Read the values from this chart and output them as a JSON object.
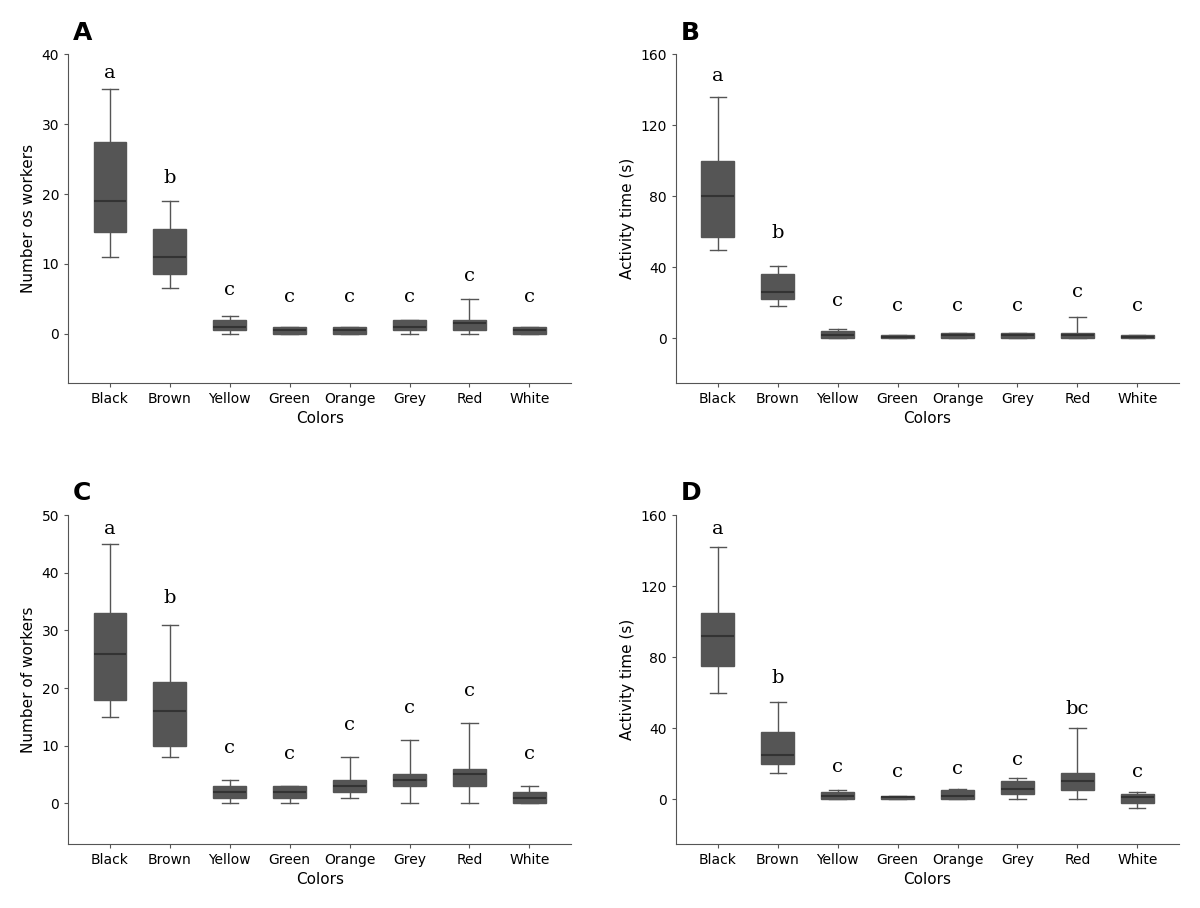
{
  "categories": [
    "Black",
    "Brown",
    "Yellow",
    "Green",
    "Orange",
    "Grey",
    "Red",
    "White"
  ],
  "panel_labels": [
    "A",
    "B",
    "C",
    "D"
  ],
  "box_facecolor": "#c8c8c8",
  "box_edgecolor": "#555555",
  "median_color": "#333333",
  "whisker_color": "#555555",
  "cap_color": "#555555",
  "A": {
    "ylabel": "Number os workers",
    "xlabel": "Colors",
    "ylim": [
      -7,
      40
    ],
    "yticks": [
      0,
      10,
      20,
      30,
      40
    ],
    "sig_labels": [
      "a",
      "b",
      "c",
      "c",
      "c",
      "c",
      "c",
      "c"
    ],
    "boxes": [
      {
        "q1": 14.5,
        "median": 19,
        "q3": 27.5,
        "whislo": 11,
        "whishi": 35
      },
      {
        "q1": 8.5,
        "median": 11,
        "q3": 15,
        "whislo": 6.5,
        "whishi": 19
      },
      {
        "q1": 0.5,
        "median": 1,
        "q3": 2,
        "whislo": 0,
        "whishi": 2.5
      },
      {
        "q1": 0,
        "median": 0.5,
        "q3": 1,
        "whislo": 0,
        "whishi": 1
      },
      {
        "q1": 0,
        "median": 0.5,
        "q3": 1,
        "whislo": 0,
        "whishi": 1
      },
      {
        "q1": 0.5,
        "median": 1,
        "q3": 2,
        "whislo": 0,
        "whishi": 2
      },
      {
        "q1": 0.5,
        "median": 1.5,
        "q3": 2,
        "whislo": 0,
        "whishi": 5
      },
      {
        "q1": 0,
        "median": 0.5,
        "q3": 1,
        "whislo": 0,
        "whishi": 1
      }
    ],
    "sig_y_offsets": [
      36,
      21,
      5,
      4,
      4,
      4,
      7,
      4
    ]
  },
  "B": {
    "ylabel": "Activity time (s)",
    "xlabel": "Colors",
    "ylim": [
      -25,
      160
    ],
    "yticks": [
      0,
      40,
      80,
      120,
      160
    ],
    "sig_labels": [
      "a",
      "b",
      "c",
      "c",
      "c",
      "c",
      "c",
      "c"
    ],
    "boxes": [
      {
        "q1": 57,
        "median": 80,
        "q3": 100,
        "whislo": 50,
        "whishi": 136
      },
      {
        "q1": 22,
        "median": 26,
        "q3": 36,
        "whislo": 18,
        "whishi": 41
      },
      {
        "q1": 0,
        "median": 2,
        "q3": 4,
        "whislo": 0,
        "whishi": 5
      },
      {
        "q1": 0,
        "median": 1,
        "q3": 2,
        "whislo": 0,
        "whishi": 2
      },
      {
        "q1": 0,
        "median": 2,
        "q3": 3,
        "whislo": 0,
        "whishi": 3
      },
      {
        "q1": 0,
        "median": 2,
        "q3": 3,
        "whislo": 0,
        "whishi": 3
      },
      {
        "q1": 0,
        "median": 2,
        "q3": 3,
        "whislo": 0,
        "whishi": 12
      },
      {
        "q1": 0,
        "median": 1,
        "q3": 2,
        "whislo": 0,
        "whishi": 2
      }
    ],
    "sig_y_offsets": [
      143,
      54,
      16,
      13,
      13,
      13,
      21,
      13
    ]
  },
  "C": {
    "ylabel": "Number of workers",
    "xlabel": "Colors",
    "ylim": [
      -7,
      50
    ],
    "yticks": [
      0,
      10,
      20,
      30,
      40,
      50
    ],
    "sig_labels": [
      "a",
      "b",
      "c",
      "c",
      "c",
      "c",
      "c",
      "c"
    ],
    "boxes": [
      {
        "q1": 18,
        "median": 26,
        "q3": 33,
        "whislo": 15,
        "whishi": 45
      },
      {
        "q1": 10,
        "median": 16,
        "q3": 21,
        "whislo": 8,
        "whishi": 31
      },
      {
        "q1": 1,
        "median": 2,
        "q3": 3,
        "whislo": 0,
        "whishi": 4
      },
      {
        "q1": 1,
        "median": 2,
        "q3": 3,
        "whislo": 0,
        "whishi": 3
      },
      {
        "q1": 2,
        "median": 3,
        "q3": 4,
        "whislo": 1,
        "whishi": 8
      },
      {
        "q1": 3,
        "median": 4,
        "q3": 5,
        "whislo": 0,
        "whishi": 11
      },
      {
        "q1": 3,
        "median": 5,
        "q3": 6,
        "whislo": 0,
        "whishi": 14
      },
      {
        "q1": 0,
        "median": 1,
        "q3": 2,
        "whislo": 0,
        "whishi": 3
      }
    ],
    "sig_y_offsets": [
      46,
      34,
      8,
      7,
      12,
      15,
      18,
      7
    ]
  },
  "D": {
    "ylabel": "Activity time (s)",
    "xlabel": "Colors",
    "ylim": [
      -25,
      160
    ],
    "yticks": [
      0,
      40,
      80,
      120,
      160
    ],
    "sig_labels": [
      "a",
      "b",
      "c",
      "c",
      "c",
      "c",
      "bc",
      "c"
    ],
    "boxes": [
      {
        "q1": 75,
        "median": 92,
        "q3": 105,
        "whislo": 60,
        "whishi": 142
      },
      {
        "q1": 20,
        "median": 25,
        "q3": 38,
        "whislo": 15,
        "whishi": 55
      },
      {
        "q1": 0,
        "median": 2,
        "q3": 4,
        "whislo": 0,
        "whishi": 5
      },
      {
        "q1": 0,
        "median": 1,
        "q3": 2,
        "whislo": 0,
        "whishi": 2
      },
      {
        "q1": 0,
        "median": 2,
        "q3": 5,
        "whislo": 0,
        "whishi": 6
      },
      {
        "q1": 3,
        "median": 6,
        "q3": 10,
        "whislo": 0,
        "whishi": 12
      },
      {
        "q1": 5,
        "median": 10,
        "q3": 15,
        "whislo": 0,
        "whishi": 40
      },
      {
        "q1": -2,
        "median": 1,
        "q3": 3,
        "whislo": -5,
        "whishi": 4
      }
    ],
    "sig_y_offsets": [
      147,
      63,
      13,
      10,
      12,
      17,
      46,
      10
    ]
  }
}
